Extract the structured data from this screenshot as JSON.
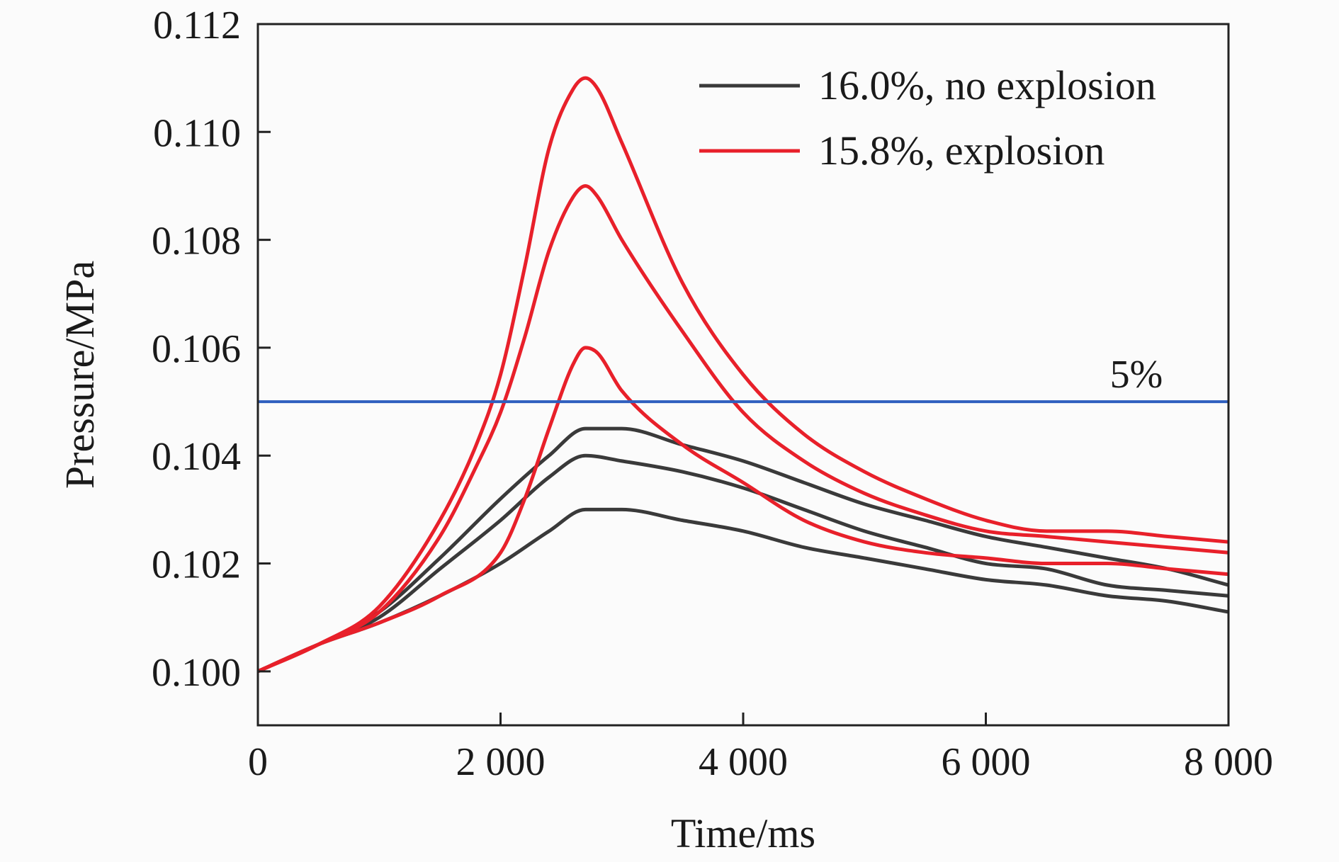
{
  "chart_data": {
    "type": "line",
    "xlabel": "Time/ms",
    "ylabel": "Pressure/MPa",
    "xlim": [
      0,
      8000
    ],
    "ylim": [
      0.099,
      0.112
    ],
    "x_ticks": [
      0,
      2000,
      4000,
      6000,
      8000
    ],
    "x_tick_labels": [
      "0",
      "2 000",
      "4 000",
      "6 000",
      "8 000"
    ],
    "y_ticks": [
      0.1,
      0.102,
      0.104,
      0.106,
      0.108,
      0.11,
      0.112
    ],
    "y_tick_labels": [
      "0.100",
      "0.102",
      "0.104",
      "0.106",
      "0.108",
      "0.110",
      "0.112"
    ],
    "grid": false,
    "legend_position": "top-right",
    "legend": [
      {
        "label": "16.0%, no explosion",
        "color": "#3a3a3a"
      },
      {
        "label": "15.8%, explosion",
        "color": "#e8202a"
      }
    ],
    "reference_line": {
      "y": 0.105,
      "label": "5%",
      "color": "#2f5fbf"
    },
    "series": [
      {
        "group": "15.8%, explosion",
        "color": "#e8202a",
        "x": [
          0,
          500,
          1000,
          1500,
          1800,
          2000,
          2200,
          2400,
          2600,
          2700,
          2800,
          3000,
          3500,
          4000,
          4500,
          5000,
          5500,
          6000,
          6500,
          7000,
          7500,
          8000
        ],
        "y": [
          0.1,
          0.1005,
          0.1012,
          0.1028,
          0.1042,
          0.1055,
          0.1075,
          0.1097,
          0.1108,
          0.111,
          0.1108,
          0.1098,
          0.1072,
          0.1055,
          0.1044,
          0.1037,
          0.1032,
          0.1028,
          0.1026,
          0.1026,
          0.1025,
          0.1024
        ]
      },
      {
        "group": "15.8%, explosion",
        "color": "#e8202a",
        "x": [
          0,
          500,
          1000,
          1500,
          1800,
          2000,
          2200,
          2400,
          2600,
          2700,
          2800,
          3000,
          3500,
          4000,
          4500,
          5000,
          5500,
          6000,
          6500,
          7000,
          7500,
          8000
        ],
        "y": [
          0.1,
          0.1005,
          0.1011,
          0.1025,
          0.1038,
          0.1048,
          0.1062,
          0.1078,
          0.1088,
          0.109,
          0.1088,
          0.108,
          0.1063,
          0.1048,
          0.1039,
          0.1033,
          0.1029,
          0.1026,
          0.1025,
          0.1024,
          0.1023,
          0.1022
        ]
      },
      {
        "group": "15.8%, explosion",
        "color": "#e8202a",
        "x": [
          0,
          500,
          1000,
          1500,
          2000,
          2200,
          2400,
          2600,
          2700,
          2800,
          3000,
          3500,
          4000,
          4500,
          5000,
          5500,
          6000,
          6500,
          7000,
          7500,
          8000
        ],
        "y": [
          0.1,
          0.1005,
          0.1009,
          0.1014,
          0.1022,
          0.1032,
          0.1045,
          0.1057,
          0.106,
          0.1059,
          0.1052,
          0.1042,
          0.1035,
          0.1028,
          0.1024,
          0.1022,
          0.1021,
          0.102,
          0.102,
          0.1019,
          0.1018
        ]
      },
      {
        "group": "16.0%, no explosion",
        "color": "#3a3a3a",
        "x": [
          0,
          500,
          1000,
          1500,
          2000,
          2400,
          2700,
          3000,
          3500,
          4000,
          4500,
          5000,
          5500,
          6000,
          6500,
          7000,
          7500,
          8000
        ],
        "y": [
          0.1,
          0.1005,
          0.1011,
          0.1021,
          0.1032,
          0.104,
          0.1045,
          0.1045,
          0.1042,
          0.1039,
          0.1035,
          0.1031,
          0.1028,
          0.1025,
          0.1023,
          0.1021,
          0.1019,
          0.1016
        ]
      },
      {
        "group": "16.0%, no explosion",
        "color": "#3a3a3a",
        "x": [
          0,
          500,
          1000,
          1500,
          2000,
          2400,
          2700,
          3000,
          3500,
          4000,
          4500,
          5000,
          5500,
          6000,
          6500,
          7000,
          7500,
          8000
        ],
        "y": [
          0.1,
          0.1005,
          0.101,
          0.1019,
          0.1028,
          0.1036,
          0.104,
          0.1039,
          0.1037,
          0.1034,
          0.103,
          0.1026,
          0.1023,
          0.102,
          0.1019,
          0.1016,
          0.1015,
          0.1014
        ]
      },
      {
        "group": "16.0%, no explosion",
        "color": "#3a3a3a",
        "x": [
          0,
          500,
          1000,
          1500,
          2000,
          2400,
          2700,
          3000,
          3500,
          4000,
          4500,
          5000,
          5500,
          6000,
          6500,
          7000,
          7500,
          8000
        ],
        "y": [
          0.1,
          0.1005,
          0.1009,
          0.1014,
          0.102,
          0.1026,
          0.103,
          0.103,
          0.1028,
          0.1026,
          0.1023,
          0.1021,
          0.1019,
          0.1017,
          0.1016,
          0.1014,
          0.1013,
          0.1011
        ]
      }
    ]
  }
}
